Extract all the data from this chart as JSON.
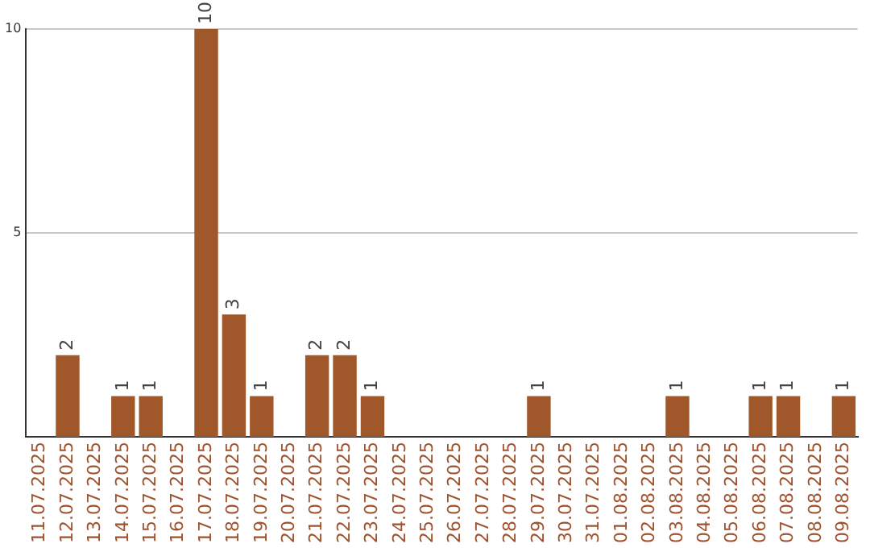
{
  "chart_data": {
    "type": "bar",
    "categories": [
      "11.07.2025",
      "12.07.2025",
      "13.07.2025",
      "14.07.2025",
      "15.07.2025",
      "16.07.2025",
      "17.07.2025",
      "18.07.2025",
      "19.07.2025",
      "20.07.2025",
      "21.07.2025",
      "22.07.2025",
      "23.07.2025",
      "24.07.2025",
      "25.07.2025",
      "26.07.2025",
      "27.07.2025",
      "28.07.2025",
      "29.07.2025",
      "30.07.2025",
      "31.07.2025",
      "01.08.2025",
      "02.08.2025",
      "03.08.2025",
      "04.08.2025",
      "05.08.2025",
      "06.08.2025",
      "07.08.2025",
      "08.08.2025",
      "09.08.2025"
    ],
    "values": [
      0,
      2,
      0,
      1,
      1,
      0,
      10,
      3,
      1,
      0,
      2,
      2,
      1,
      0,
      0,
      0,
      0,
      0,
      1,
      0,
      0,
      0,
      0,
      1,
      0,
      0,
      1,
      1,
      0,
      1
    ],
    "value_labels": [
      null,
      "2",
      null,
      "1",
      "1",
      null,
      "10",
      "3",
      "1",
      null,
      "2",
      "2",
      "1",
      null,
      null,
      null,
      null,
      null,
      "1",
      null,
      null,
      null,
      null,
      "1",
      null,
      null,
      "1",
      "1",
      null,
      "1"
    ],
    "color": "#a0582a",
    "ylim": [
      0,
      10
    ],
    "yticks": [
      5,
      10
    ],
    "grid": "y"
  }
}
